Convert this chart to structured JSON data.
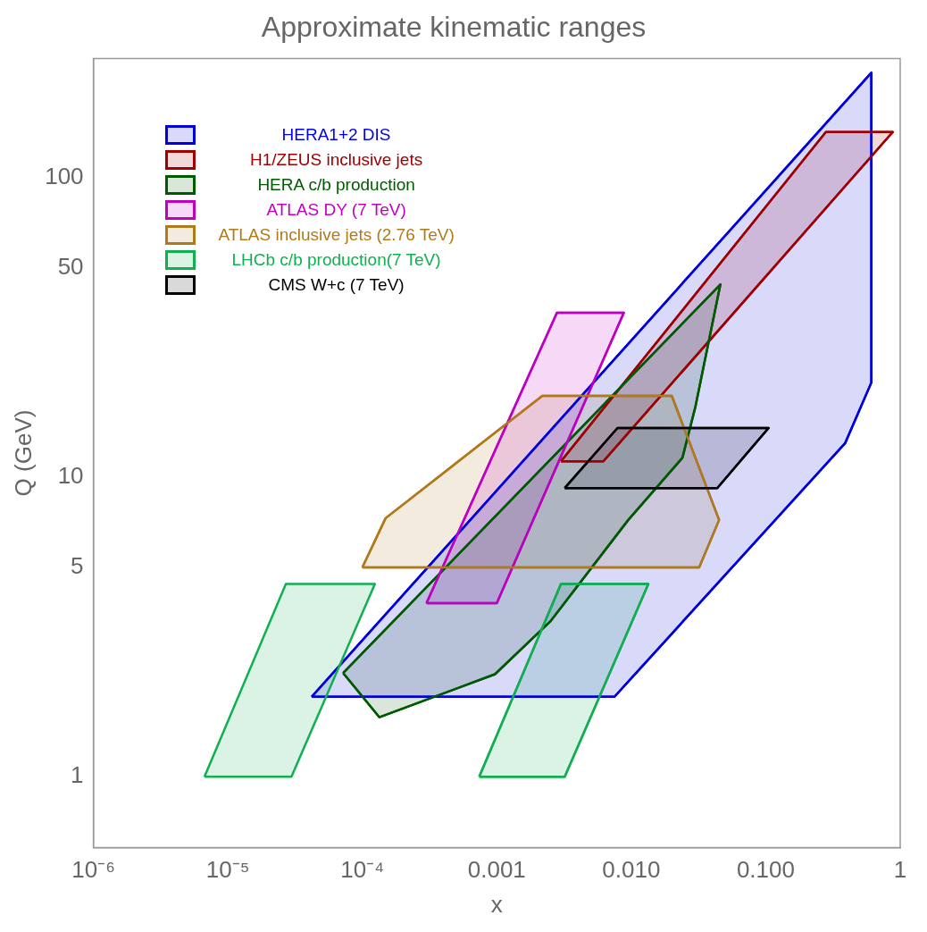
{
  "chart_data": {
    "type": "area",
    "title": "Approximate kinematic ranges",
    "xlabel": "x",
    "ylabel": "Q (GeV)",
    "log": "xy",
    "grid": false,
    "legend": "top left",
    "marker": "none",
    "line_style": "solid",
    "xlim": [
      1e-06,
      1
    ],
    "xticks": [
      {
        "value": 1e-06,
        "label": "10⁻⁶"
      },
      {
        "value": 1e-05,
        "label": "10⁻⁵"
      },
      {
        "value": 0.0001,
        "label": "10⁻⁴"
      },
      {
        "value": 0.001,
        "label": "0.001"
      },
      {
        "value": 0.01,
        "label": "0.010"
      },
      {
        "value": 0.1,
        "label": "0.100"
      },
      1
    ],
    "ylim": [
      0.58,
      250
    ],
    "yticks": [
      1,
      5,
      10,
      50,
      100
    ],
    "series": [
      {
        "name": "HERA1+2 DIS",
        "color": "#0000e0",
        "x": [
          4.2e-05,
          0.61,
          0.61,
          0.39,
          0.0075,
          4.2e-05
        ],
        "values": [
          1.85,
          224,
          20.7,
          13,
          1.85,
          1.85
        ]
      },
      {
        "name": "H1/ZEUS inclusive jets",
        "color": "#a00000",
        "x": [
          0.003,
          0.0062,
          0.88,
          0.28,
          0.003
        ],
        "values": [
          11.3,
          11.3,
          142,
          142,
          11.3
        ]
      },
      {
        "name": "HERA c/b production",
        "color": "#005a00",
        "x": [
          7.2e-05,
          0.000134,
          0.00097,
          0.0025,
          0.0095,
          0.024,
          0.03,
          0.046,
          7.2e-05
        ],
        "values": [
          2.22,
          1.58,
          2.2,
          3.3,
          7.2,
          11.6,
          17.2,
          44,
          2.22
        ]
      },
      {
        "name": "ATLAS DY (7 TeV)",
        "color": "#c000c0",
        "x": [
          0.0003,
          0.001,
          0.0088,
          0.0028,
          0.0003
        ],
        "values": [
          3.8,
          3.8,
          35.4,
          35.4,
          3.8
        ]
      },
      {
        "name": "ATLAS inclusive jets (2.76 TeV)",
        "color": "#b07a1a",
        "x": [
          0.0001,
          0.000149,
          0.00218,
          0.02,
          0.045,
          0.032,
          0.0001
        ],
        "values": [
          5,
          7.3,
          18.7,
          18.7,
          7.2,
          5,
          5
        ]
      },
      {
        "name": "LHCb c/b production(7 TeV)",
        "color": "#10b050",
        "x": [
          6.7e-06,
          2.97e-05,
          0.000124,
          2.7e-05,
          6.7e-06,
          null,
          0.00074,
          0.0032,
          0.0134,
          0.003,
          0.00074
        ],
        "values": [
          1,
          1,
          4.4,
          4.4,
          1,
          null,
          1,
          1,
          4.4,
          4.4,
          1
        ]
      },
      {
        "name": "CMS W+c (7 TeV)",
        "color": "#000000",
        "x": [
          0.0032,
          0.0436,
          0.105,
          0.0079,
          0.0032
        ],
        "values": [
          9.2,
          9.2,
          14.6,
          14.6,
          9.2
        ]
      }
    ]
  }
}
